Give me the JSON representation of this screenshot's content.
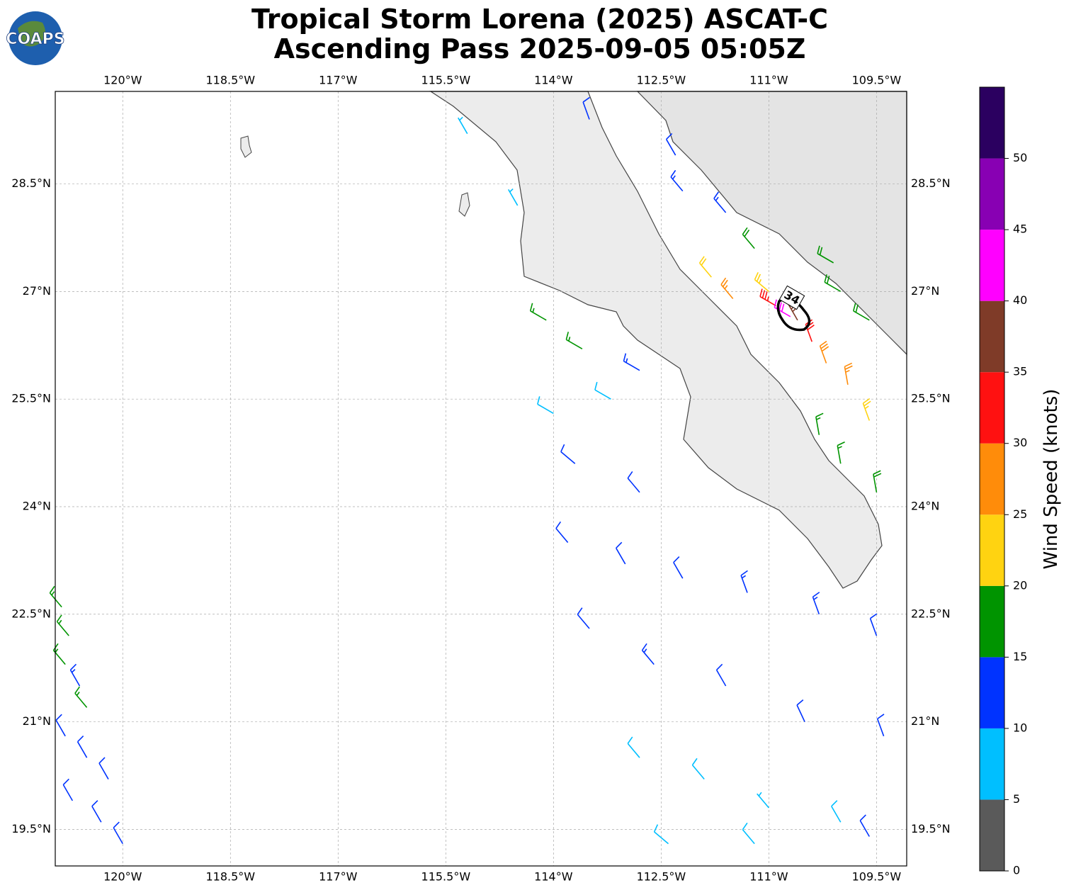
{
  "header": {
    "title": [
      "Tropical Storm Lorena (2025) ASCAT-C",
      "Ascending Pass 2025-09-05 05:05Z"
    ],
    "logo": "COAPS"
  },
  "map": {
    "xlim": [
      -120.94,
      -109.08
    ],
    "ylim": [
      18.99,
      29.79
    ],
    "xticks": [
      {
        "value": -120,
        "label": "120°W"
      },
      {
        "value": -118.5,
        "label": "118.5°W"
      },
      {
        "value": -117,
        "label": "117°W"
      },
      {
        "value": -115.5,
        "label": "115.5°W"
      },
      {
        "value": -114,
        "label": "114°W"
      },
      {
        "value": -112.5,
        "label": "112.5°W"
      },
      {
        "value": -111,
        "label": "111°W"
      },
      {
        "value": -109.5,
        "label": "109.5°W"
      }
    ],
    "yticks": [
      {
        "value": 28.5,
        "label": "28.5°N"
      },
      {
        "value": 27,
        "label": "27°N"
      },
      {
        "value": 25.5,
        "label": "25.5°N"
      },
      {
        "value": 24,
        "label": "24°N"
      },
      {
        "value": 22.5,
        "label": "22.5°N"
      },
      {
        "value": 21,
        "label": "21°N"
      },
      {
        "value": 19.5,
        "label": "19.5°N"
      }
    ],
    "grid": true,
    "contour": {
      "value": 34
    },
    "barbs": [
      {
        "lon": -120.85,
        "lat": 22.6,
        "speed": 17,
        "dir": 320
      },
      {
        "lon": -120.75,
        "lat": 22.2,
        "speed": 17,
        "dir": 320
      },
      {
        "lon": -120.8,
        "lat": 21.8,
        "speed": 16,
        "dir": 320
      },
      {
        "lon": -120.6,
        "lat": 21.5,
        "speed": 13,
        "dir": 330
      },
      {
        "lon": -120.5,
        "lat": 21.2,
        "speed": 16,
        "dir": 320
      },
      {
        "lon": -120.8,
        "lat": 20.8,
        "speed": 12,
        "dir": 330
      },
      {
        "lon": -120.5,
        "lat": 20.5,
        "speed": 12,
        "dir": 330
      },
      {
        "lon": -120.2,
        "lat": 20.2,
        "speed": 12,
        "dir": 330
      },
      {
        "lon": -120.7,
        "lat": 19.9,
        "speed": 11,
        "dir": 330
      },
      {
        "lon": -120.3,
        "lat": 19.6,
        "speed": 11,
        "dir": 330
      },
      {
        "lon": -120.0,
        "lat": 19.3,
        "speed": 11,
        "dir": 330
      },
      {
        "lon": -113.8,
        "lat": 23.5,
        "speed": 11,
        "dir": 320
      },
      {
        "lon": -113.0,
        "lat": 23.2,
        "speed": 11,
        "dir": 330
      },
      {
        "lon": -112.2,
        "lat": 23.0,
        "speed": 12,
        "dir": 330
      },
      {
        "lon": -111.3,
        "lat": 22.8,
        "speed": 13,
        "dir": 340
      },
      {
        "lon": -110.3,
        "lat": 22.5,
        "speed": 13,
        "dir": 340
      },
      {
        "lon": -109.5,
        "lat": 22.2,
        "speed": 12,
        "dir": 340
      },
      {
        "lon": -113.5,
        "lat": 22.3,
        "speed": 12,
        "dir": 320
      },
      {
        "lon": -112.6,
        "lat": 21.8,
        "speed": 13,
        "dir": 320
      },
      {
        "lon": -111.6,
        "lat": 21.5,
        "speed": 12,
        "dir": 330
      },
      {
        "lon": -110.5,
        "lat": 21.0,
        "speed": 12,
        "dir": 335
      },
      {
        "lon": -109.4,
        "lat": 20.8,
        "speed": 12,
        "dir": 340
      },
      {
        "lon": -112.8,
        "lat": 20.5,
        "speed": 8,
        "dir": 320
      },
      {
        "lon": -111.9,
        "lat": 20.2,
        "speed": 8,
        "dir": 320
      },
      {
        "lon": -111.0,
        "lat": 19.8,
        "speed": 7,
        "dir": 320
      },
      {
        "lon": -110.0,
        "lat": 19.6,
        "speed": 9,
        "dir": 330
      },
      {
        "lon": -112.4,
        "lat": 19.3,
        "speed": 8,
        "dir": 310
      },
      {
        "lon": -111.2,
        "lat": 19.3,
        "speed": 8,
        "dir": 320
      },
      {
        "lon": -109.6,
        "lat": 19.4,
        "speed": 10,
        "dir": 330
      },
      {
        "lon": -114.0,
        "lat": 25.3,
        "speed": 8,
        "dir": 300
      },
      {
        "lon": -113.2,
        "lat": 25.5,
        "speed": 8,
        "dir": 300
      },
      {
        "lon": -113.7,
        "lat": 24.6,
        "speed": 12,
        "dir": 310
      },
      {
        "lon": -112.8,
        "lat": 24.2,
        "speed": 12,
        "dir": 320
      },
      {
        "lon": -113.6,
        "lat": 26.2,
        "speed": 16,
        "dir": 300
      },
      {
        "lon": -114.1,
        "lat": 26.6,
        "speed": 17,
        "dir": 300
      },
      {
        "lon": -112.8,
        "lat": 25.9,
        "speed": 13,
        "dir": 300
      },
      {
        "lon": -114.5,
        "lat": 28.2,
        "speed": 7,
        "dir": 330
      },
      {
        "lon": -115.2,
        "lat": 29.2,
        "speed": 7,
        "dir": 330
      },
      {
        "lon": -112.3,
        "lat": 28.9,
        "speed": 12,
        "dir": 330
      },
      {
        "lon": -113.5,
        "lat": 29.4,
        "speed": 11,
        "dir": 340
      },
      {
        "lon": -112.2,
        "lat": 28.4,
        "speed": 13,
        "dir": 320
      },
      {
        "lon": -111.6,
        "lat": 28.1,
        "speed": 14,
        "dir": 320
      },
      {
        "lon": -111.2,
        "lat": 27.6,
        "speed": 18,
        "dir": 320
      },
      {
        "lon": -111.8,
        "lat": 27.2,
        "speed": 22,
        "dir": 320
      },
      {
        "lon": -111.0,
        "lat": 27.0,
        "speed": 23,
        "dir": 310
      },
      {
        "lon": -111.5,
        "lat": 26.9,
        "speed": 27,
        "dir": 320
      },
      {
        "lon": -110.9,
        "lat": 26.8,
        "speed": 33,
        "dir": 300
      },
      {
        "lon": -110.6,
        "lat": 26.6,
        "speed": 36,
        "dir": 330
      },
      {
        "lon": -110.4,
        "lat": 26.3,
        "speed": 32,
        "dir": 340
      },
      {
        "lon": -110.2,
        "lat": 26.0,
        "speed": 28,
        "dir": 340
      },
      {
        "lon": -109.9,
        "lat": 25.7,
        "speed": 26,
        "dir": 350
      },
      {
        "lon": -109.6,
        "lat": 25.2,
        "speed": 23,
        "dir": 340
      },
      {
        "lon": -110.3,
        "lat": 25.0,
        "speed": 17,
        "dir": 350
      },
      {
        "lon": -110.0,
        "lat": 24.6,
        "speed": 17,
        "dir": 350
      },
      {
        "lon": -109.5,
        "lat": 24.2,
        "speed": 18,
        "dir": 350
      },
      {
        "lon": -110.7,
        "lat": 26.65,
        "speed": 42,
        "dir": 300
      },
      {
        "lon": -110.0,
        "lat": 27.0,
        "speed": 18,
        "dir": 300
      },
      {
        "lon": -109.6,
        "lat": 26.6,
        "speed": 18,
        "dir": 300
      },
      {
        "lon": -110.1,
        "lat": 27.4,
        "speed": 18,
        "dir": 300
      }
    ]
  },
  "colorbar": {
    "label": "Wind Speed (knots)",
    "levels": [
      0,
      5,
      10,
      15,
      20,
      25,
      30,
      35,
      40,
      45,
      50,
      55
    ],
    "colors": [
      "#5a5a5a",
      "#00bfff",
      "#0033ff",
      "#009400",
      "#ffd311",
      "#ff8c0a",
      "#ff1111",
      "#7f3b28",
      "#ff00ff",
      "#8800b3",
      "#2b0060"
    ],
    "ticks": [
      0,
      5,
      10,
      15,
      20,
      25,
      30,
      35,
      40,
      45,
      50
    ]
  }
}
